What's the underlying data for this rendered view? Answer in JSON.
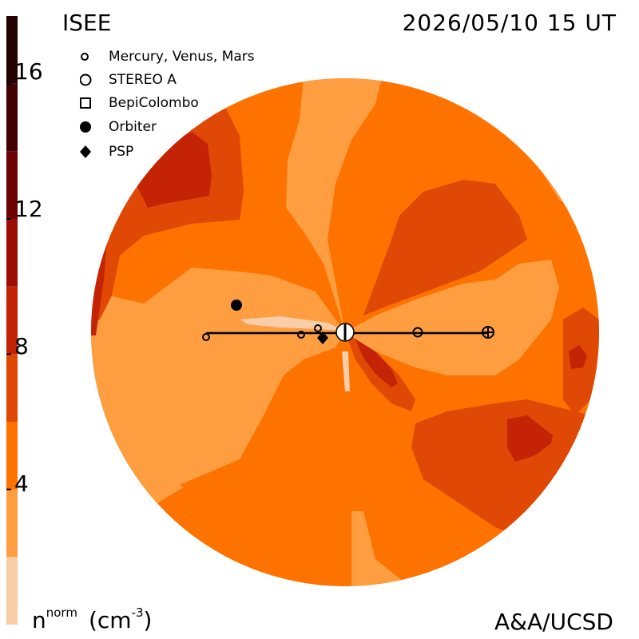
{
  "header": {
    "source": "ISEE",
    "datetime": "2026/05/10 15 UT"
  },
  "footer": {
    "credit": "A&A/UCSD"
  },
  "colorbar": {
    "quantity": "n",
    "quantity_superscript": "norm",
    "unit": "(cm",
    "unit_superscript": "-3",
    "unit_close": ")",
    "tick_labels": [
      "16",
      "12",
      "8",
      "4"
    ],
    "tick_values": [
      16,
      12,
      8,
      4
    ],
    "range": [
      0,
      18
    ],
    "bands": [
      {
        "from": 0,
        "to": 2,
        "color": "#f8cda8"
      },
      {
        "from": 2,
        "to": 4,
        "color": "#fe9e40"
      },
      {
        "from": 4,
        "to": 6,
        "color": "#fe7200"
      },
      {
        "from": 6,
        "to": 8,
        "color": "#df4805"
      },
      {
        "from": 8,
        "to": 10,
        "color": "#c42305"
      },
      {
        "from": 10,
        "to": 12,
        "color": "#9c0e04"
      },
      {
        "from": 12,
        "to": 14,
        "color": "#6d0303"
      },
      {
        "from": 14,
        "to": 16,
        "color": "#420000"
      },
      {
        "from": 16,
        "to": 18,
        "color": "#240000"
      }
    ]
  },
  "legend": {
    "items": [
      {
        "label": "Mercury, Venus, Mars",
        "marker": "small-circle"
      },
      {
        "label": "STEREO A",
        "marker": "open-circle"
      },
      {
        "label": "BepiColombo",
        "marker": "open-square"
      },
      {
        "label": "Orbiter",
        "marker": "filled-circle"
      },
      {
        "label": "PSP",
        "marker": "filled-diamond"
      }
    ]
  },
  "map": {
    "background_color": "#fe7200"
  }
}
